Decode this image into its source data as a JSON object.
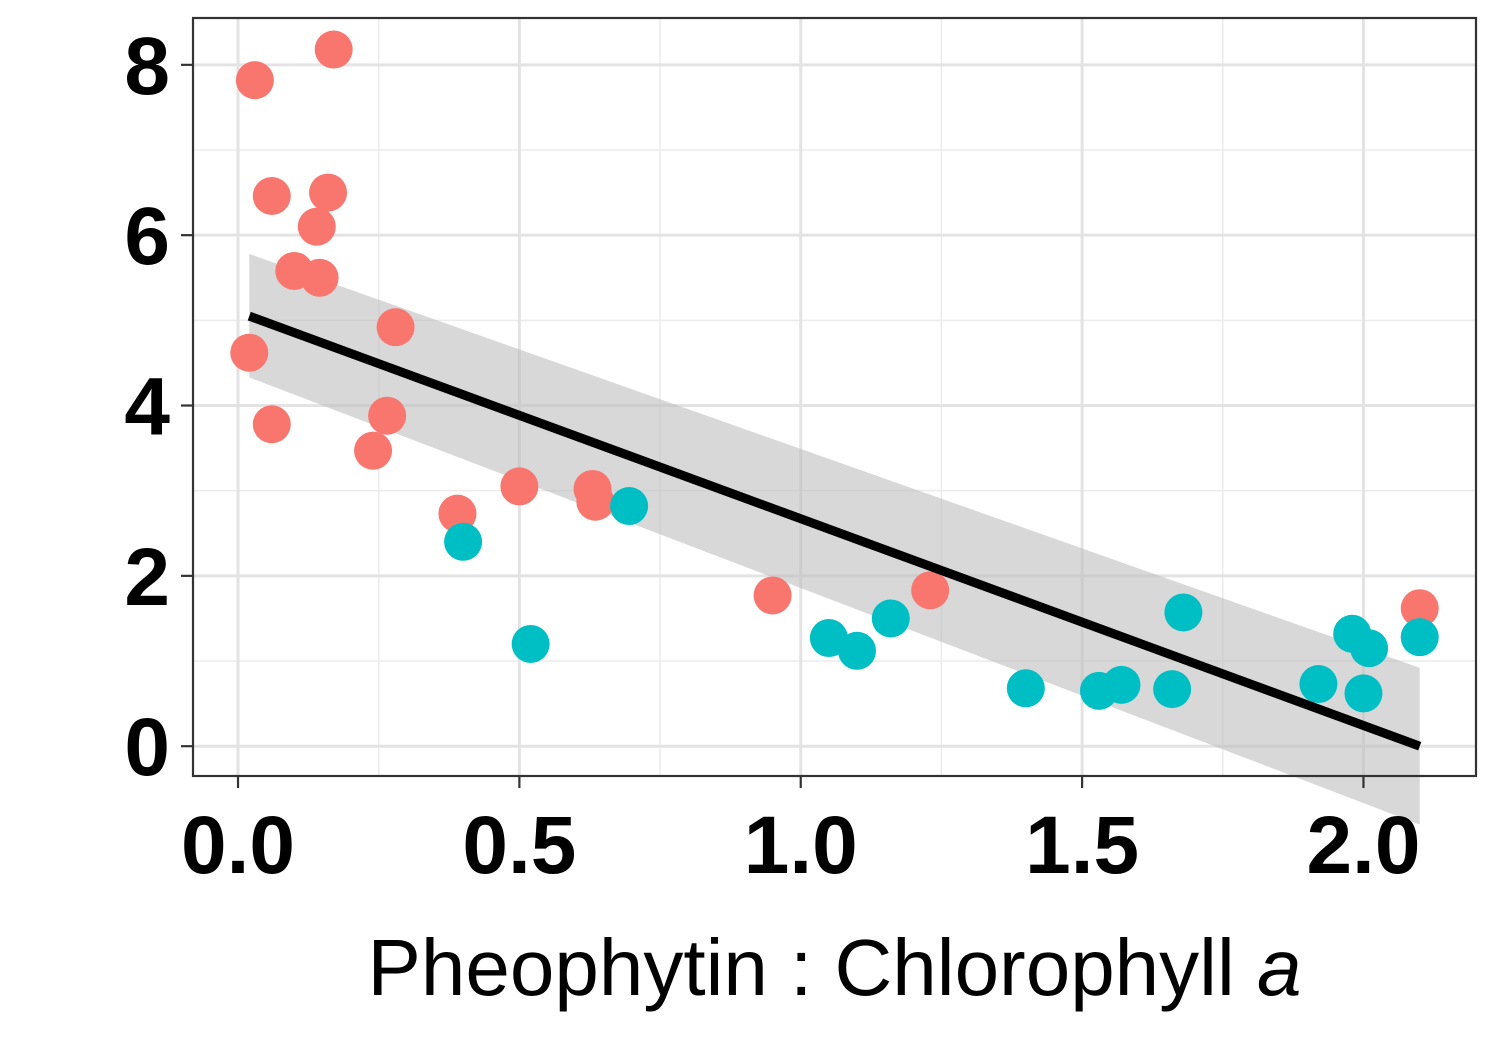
{
  "chart_data": {
    "type": "scatter",
    "title": "",
    "xlabel_main": "Pheophytin : Chlorophyll ",
    "xlabel_italic": "a",
    "ylabel": "",
    "xlim": [
      -0.08,
      2.2
    ],
    "ylim": [
      -0.35,
      8.55
    ],
    "x_ticks": [
      0.0,
      0.5,
      1.0,
      1.5,
      2.0
    ],
    "x_tick_labels": [
      "0.0",
      "0.5",
      "1.0",
      "1.5",
      "2.0"
    ],
    "y_ticks": [
      0,
      2,
      4,
      6,
      8
    ],
    "y_tick_labels": [
      "0",
      "2",
      "4",
      "6",
      "8"
    ],
    "x_minor": [
      0.25,
      0.75,
      1.25,
      1.75
    ],
    "y_minor": [
      1,
      3,
      5,
      7
    ],
    "grid": true,
    "legend": "none",
    "series": [
      {
        "color": "#F8766D",
        "points": [
          [
            0.03,
            7.82
          ],
          [
            0.17,
            8.18
          ],
          [
            0.06,
            6.46
          ],
          [
            0.16,
            6.5
          ],
          [
            0.14,
            6.1
          ],
          [
            0.1,
            5.58
          ],
          [
            0.145,
            5.5
          ],
          [
            0.28,
            4.92
          ],
          [
            0.02,
            4.62
          ],
          [
            0.06,
            3.78
          ],
          [
            0.265,
            3.88
          ],
          [
            0.24,
            3.47
          ],
          [
            0.39,
            2.73
          ],
          [
            0.5,
            3.05
          ],
          [
            0.63,
            3.02
          ],
          [
            0.635,
            2.87
          ],
          [
            0.95,
            1.77
          ],
          [
            1.23,
            1.83
          ],
          [
            2.1,
            1.62
          ]
        ]
      },
      {
        "color": "#00BFC4",
        "points": [
          [
            0.4,
            2.4
          ],
          [
            0.52,
            1.2
          ],
          [
            0.695,
            2.82
          ],
          [
            1.05,
            1.27
          ],
          [
            1.1,
            1.12
          ],
          [
            1.16,
            1.5
          ],
          [
            1.4,
            0.68
          ],
          [
            1.53,
            0.65
          ],
          [
            1.57,
            0.72
          ],
          [
            1.66,
            0.67
          ],
          [
            1.68,
            1.57
          ],
          [
            1.92,
            0.73
          ],
          [
            1.98,
            1.32
          ],
          [
            2.0,
            0.62
          ],
          [
            2.01,
            1.15
          ],
          [
            2.1,
            1.28
          ]
        ]
      }
    ],
    "trend_line": {
      "color": "#000000",
      "x": [
        0.02,
        2.1
      ],
      "y": [
        5.05,
        0.0
      ],
      "band_color": "#BEBEBE",
      "band_upper_start": 5.78,
      "band_upper_end": 0.92,
      "band_lower_start": 4.33,
      "band_lower_end": -0.92
    }
  }
}
